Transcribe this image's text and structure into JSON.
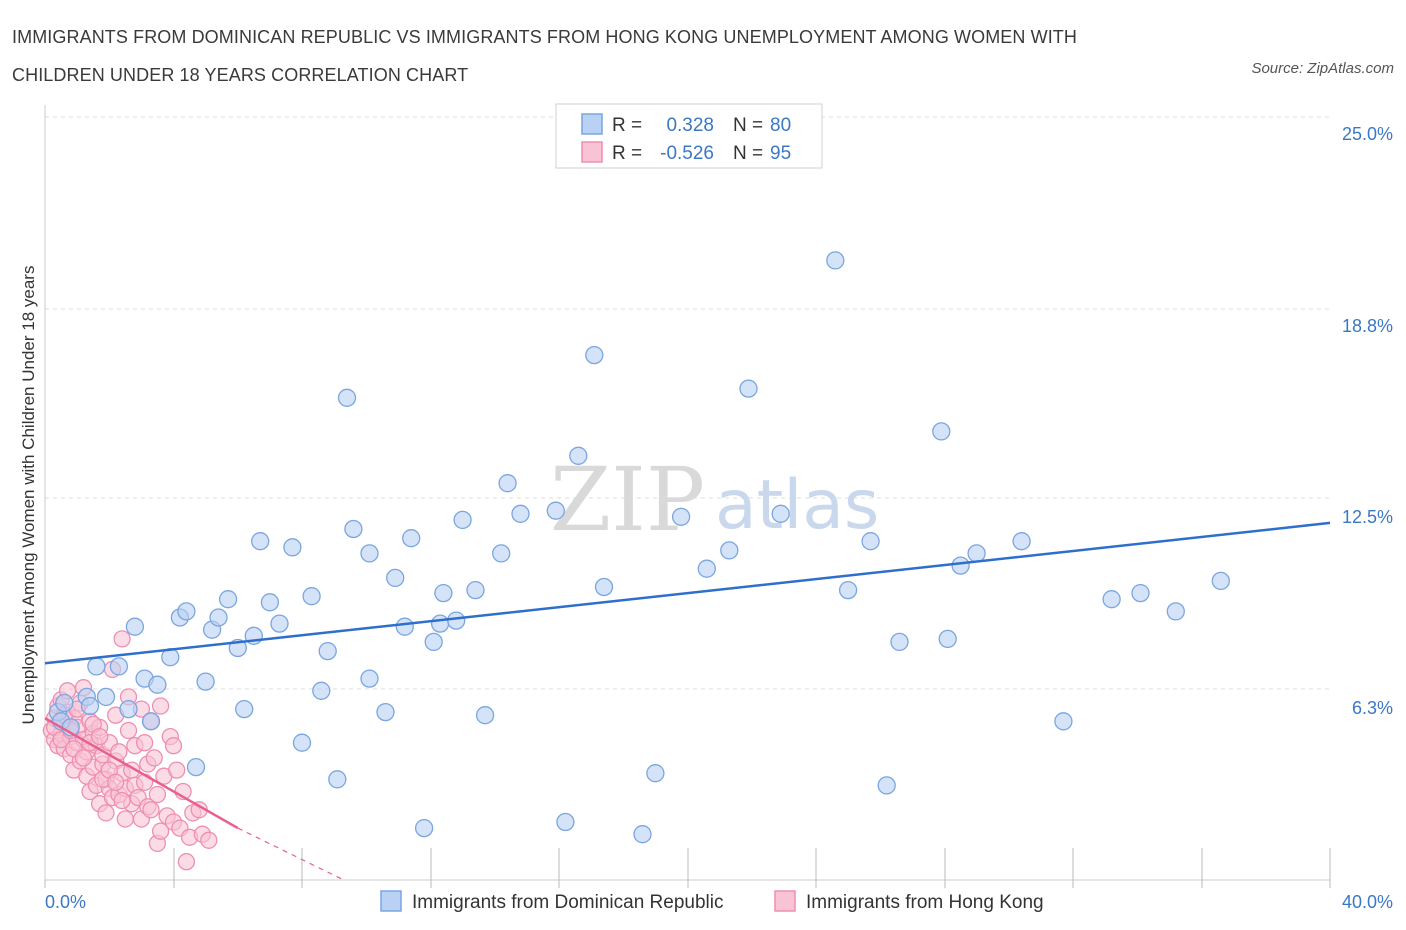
{
  "title": "IMMIGRANTS FROM DOMINICAN REPUBLIC VS IMMIGRANTS FROM HONG KONG UNEMPLOYMENT AMONG WOMEN WITH CHILDREN UNDER 18 YEARS CORRELATION CHART",
  "source": "Source: ZipAtlas.com",
  "watermark": {
    "zip": "ZIP",
    "atlas": "atlas"
  },
  "legend": {
    "r_label": "R =",
    "n_label": "N =",
    "rows": [
      {
        "r_value": "0.328",
        "n_value": "80"
      },
      {
        "r_value": "-0.526",
        "n_value": "95"
      }
    ]
  },
  "bottom_legend": [
    "Immigrants from Dominican Republic",
    "Immigrants from Hong Kong"
  ],
  "colors": {
    "blue_fill": "#b9d1f3",
    "blue_stroke": "#7aa6e0",
    "blue_line": "#2f6fcc",
    "pink_fill": "#f8c3d5",
    "pink_stroke": "#ef8fb0",
    "pink_line": "#e8608c",
    "axis_text": "#3b78c4",
    "grid": "#dddddd"
  },
  "chart_data": {
    "type": "scatter",
    "title": "IMMIGRANTS FROM DOMINICAN REPUBLIC VS IMMIGRANTS FROM HONG KONG UNEMPLOYMENT AMONG WOMEN WITH CHILDREN UNDER 18 YEARS CORRELATION CHART",
    "xlabel": "",
    "ylabel": "Unemployment Among Women with Children Under 18 years",
    "xlim": [
      0,
      40
    ],
    "ylim": [
      0,
      25
    ],
    "x_tick_labels": [
      "0.0%",
      "40.0%"
    ],
    "y_ticks": [
      6.3,
      12.5,
      18.8,
      25.0
    ],
    "y_tick_labels": [
      "6.3%",
      "12.5%",
      "18.8%",
      "25.0%"
    ],
    "grid": true,
    "legend_position": "top-center",
    "series": [
      {
        "name": "Immigrants from Dominican Republic",
        "R": 0.328,
        "N": 80,
        "trend": {
          "x": [
            0,
            40
          ],
          "y": [
            7.1,
            11.7
          ]
        },
        "points": [
          [
            0.4,
            5.5
          ],
          [
            0.5,
            5.2
          ],
          [
            0.6,
            5.8
          ],
          [
            0.8,
            5.0
          ],
          [
            1.3,
            6.0
          ],
          [
            1.4,
            5.7
          ],
          [
            1.6,
            7.0
          ],
          [
            1.9,
            6.0
          ],
          [
            2.3,
            7.0
          ],
          [
            2.6,
            5.6
          ],
          [
            2.8,
            8.3
          ],
          [
            3.1,
            6.6
          ],
          [
            3.3,
            5.2
          ],
          [
            3.5,
            6.4
          ],
          [
            3.9,
            7.3
          ],
          [
            4.2,
            8.6
          ],
          [
            4.4,
            8.8
          ],
          [
            4.7,
            3.7
          ],
          [
            5.0,
            6.5
          ],
          [
            5.2,
            8.2
          ],
          [
            5.4,
            8.6
          ],
          [
            5.7,
            9.2
          ],
          [
            6.0,
            7.6
          ],
          [
            6.2,
            5.6
          ],
          [
            6.5,
            8.0
          ],
          [
            6.7,
            11.1
          ],
          [
            7.0,
            9.1
          ],
          [
            7.3,
            8.4
          ],
          [
            7.7,
            10.9
          ],
          [
            8.0,
            4.5
          ],
          [
            8.3,
            9.3
          ],
          [
            8.6,
            6.2
          ],
          [
            8.8,
            7.5
          ],
          [
            9.1,
            3.3
          ],
          [
            9.4,
            15.8
          ],
          [
            9.6,
            11.5
          ],
          [
            10.1,
            10.7
          ],
          [
            10.1,
            6.6
          ],
          [
            10.6,
            5.5
          ],
          [
            10.9,
            9.9
          ],
          [
            11.2,
            8.3
          ],
          [
            11.4,
            11.2
          ],
          [
            11.8,
            1.7
          ],
          [
            12.1,
            7.8
          ],
          [
            12.3,
            8.4
          ],
          [
            12.4,
            9.4
          ],
          [
            12.8,
            8.5
          ],
          [
            13.0,
            11.8
          ],
          [
            13.4,
            9.5
          ],
          [
            13.7,
            5.4
          ],
          [
            14.2,
            10.7
          ],
          [
            14.4,
            13.0
          ],
          [
            14.8,
            12.0
          ],
          [
            15.9,
            12.1
          ],
          [
            16.2,
            1.9
          ],
          [
            16.6,
            13.9
          ],
          [
            17.1,
            17.2
          ],
          [
            17.4,
            9.6
          ],
          [
            18.6,
            1.5
          ],
          [
            19.0,
            3.5
          ],
          [
            19.8,
            11.9
          ],
          [
            20.6,
            10.2
          ],
          [
            21.3,
            10.8
          ],
          [
            21.9,
            16.1
          ],
          [
            22.9,
            12.0
          ],
          [
            24.6,
            20.3
          ],
          [
            25.0,
            9.5
          ],
          [
            25.7,
            11.1
          ],
          [
            26.2,
            3.1
          ],
          [
            26.6,
            7.8
          ],
          [
            27.9,
            14.7
          ],
          [
            28.1,
            7.9
          ],
          [
            28.5,
            10.3
          ],
          [
            29.0,
            10.7
          ],
          [
            30.4,
            11.1
          ],
          [
            31.7,
            5.2
          ],
          [
            33.2,
            9.2
          ],
          [
            34.1,
            9.4
          ],
          [
            35.2,
            8.8
          ],
          [
            36.6,
            9.8
          ]
        ]
      },
      {
        "name": "Immigrants from Hong Kong",
        "R": -0.526,
        "N": 95,
        "trend": {
          "x": [
            0,
            6
          ],
          "y": [
            5.3,
            1.7
          ]
        },
        "trend_extension": {
          "x": [
            6,
            9.3
          ],
          "y": [
            1.7,
            0
          ]
        },
        "points": [
          [
            0.2,
            4.9
          ],
          [
            0.3,
            5.3
          ],
          [
            0.3,
            4.6
          ],
          [
            0.4,
            5.7
          ],
          [
            0.4,
            4.4
          ],
          [
            0.5,
            5.9
          ],
          [
            0.5,
            4.8
          ],
          [
            0.6,
            5.1
          ],
          [
            0.6,
            4.3
          ],
          [
            0.7,
            6.2
          ],
          [
            0.7,
            5.5
          ],
          [
            0.8,
            4.7
          ],
          [
            0.8,
            4.1
          ],
          [
            0.9,
            5.3
          ],
          [
            0.9,
            3.6
          ],
          [
            1.0,
            5.0
          ],
          [
            1.0,
            4.5
          ],
          [
            1.1,
            3.9
          ],
          [
            1.1,
            5.8
          ],
          [
            1.2,
            4.6
          ],
          [
            1.2,
            6.3
          ],
          [
            1.3,
            4.2
          ],
          [
            1.3,
            3.4
          ],
          [
            1.4,
            5.2
          ],
          [
            1.4,
            2.9
          ],
          [
            1.5,
            4.8
          ],
          [
            1.5,
            3.7
          ],
          [
            1.6,
            4.4
          ],
          [
            1.6,
            3.1
          ],
          [
            1.7,
            5.0
          ],
          [
            1.7,
            2.5
          ],
          [
            1.8,
            3.8
          ],
          [
            1.8,
            4.1
          ],
          [
            1.9,
            3.3
          ],
          [
            1.9,
            2.2
          ],
          [
            2.0,
            4.5
          ],
          [
            2.0,
            3.0
          ],
          [
            2.1,
            6.9
          ],
          [
            2.1,
            2.7
          ],
          [
            2.2,
            3.9
          ],
          [
            2.2,
            5.4
          ],
          [
            2.3,
            2.8
          ],
          [
            2.3,
            4.2
          ],
          [
            2.4,
            7.9
          ],
          [
            2.4,
            3.5
          ],
          [
            2.5,
            2.0
          ],
          [
            2.5,
            3.0
          ],
          [
            2.6,
            4.9
          ],
          [
            2.6,
            6.0
          ],
          [
            2.7,
            3.6
          ],
          [
            2.7,
            2.5
          ],
          [
            2.8,
            4.4
          ],
          [
            2.8,
            3.1
          ],
          [
            2.9,
            2.7
          ],
          [
            3.0,
            5.6
          ],
          [
            3.0,
            2.0
          ],
          [
            3.1,
            3.2
          ],
          [
            3.1,
            4.5
          ],
          [
            3.2,
            2.4
          ],
          [
            3.2,
            3.8
          ],
          [
            3.3,
            5.2
          ],
          [
            3.3,
            2.3
          ],
          [
            3.4,
            4.0
          ],
          [
            3.5,
            2.8
          ],
          [
            3.5,
            1.2
          ],
          [
            3.6,
            5.7
          ],
          [
            3.6,
            1.6
          ],
          [
            3.7,
            3.4
          ],
          [
            3.8,
            2.1
          ],
          [
            3.9,
            4.7
          ],
          [
            4.0,
            1.9
          ],
          [
            4.0,
            4.4
          ],
          [
            4.1,
            3.6
          ],
          [
            4.2,
            1.7
          ],
          [
            4.3,
            2.9
          ],
          [
            4.4,
            0.6
          ],
          [
            4.5,
            1.4
          ],
          [
            4.6,
            2.2
          ],
          [
            4.8,
            2.3
          ],
          [
            4.9,
            1.5
          ],
          [
            5.1,
            1.3
          ],
          [
            0.3,
            5.0
          ],
          [
            0.5,
            4.6
          ],
          [
            0.6,
            5.4
          ],
          [
            0.8,
            4.9
          ],
          [
            0.9,
            4.3
          ],
          [
            1.0,
            5.6
          ],
          [
            1.2,
            4.0
          ],
          [
            1.4,
            4.5
          ],
          [
            1.5,
            5.1
          ],
          [
            1.7,
            4.7
          ],
          [
            1.8,
            3.3
          ],
          [
            2.0,
            3.6
          ],
          [
            2.2,
            3.2
          ],
          [
            2.4,
            2.6
          ]
        ]
      }
    ]
  }
}
